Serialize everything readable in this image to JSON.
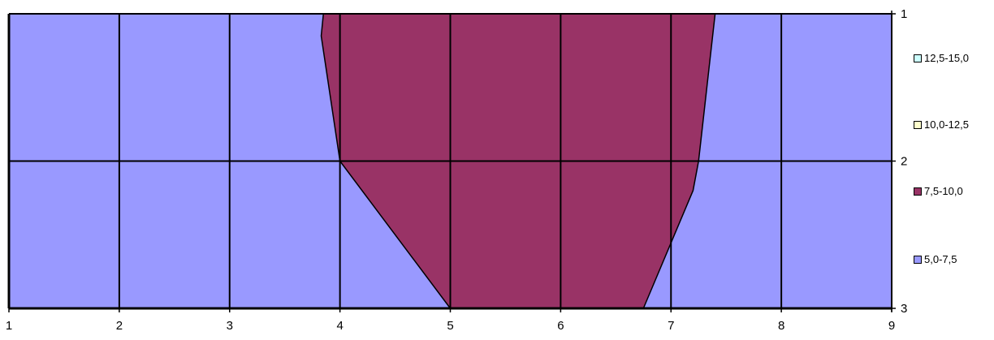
{
  "chart_data": {
    "type": "area",
    "x": {
      "ticks": [
        1,
        2,
        3,
        4,
        5,
        6,
        7,
        8,
        9
      ],
      "ticks_labels": [
        "1",
        "2",
        "3",
        "4",
        "5",
        "6",
        "7",
        "8",
        "9"
      ],
      "range": [
        1,
        9
      ]
    },
    "y": {
      "ticks": [
        1,
        2,
        3
      ],
      "ticks_labels": [
        "1",
        "2",
        "3"
      ],
      "range": [
        1,
        3
      ],
      "axis_position": "right",
      "direction": "top-to-bottom"
    },
    "grid": true,
    "legend_position": "right",
    "legend": [
      {
        "label": "12,5-15,0",
        "color": "#ccffff"
      },
      {
        "label": "10,0-12,5",
        "color": "#ffffcc"
      },
      {
        "label": "7,5-10,0",
        "color": "#993366"
      },
      {
        "label": "5,0-7,5",
        "color": "#9999ff"
      }
    ],
    "background_band": {
      "name": "5,0-7,5",
      "color": "#9999ff"
    },
    "bands": [
      {
        "name": "7,5-10,0",
        "color": "#993366",
        "left_edge": [
          [
            3.85,
            1.0
          ],
          [
            3.83,
            1.15
          ],
          [
            4.0,
            2.0
          ],
          [
            5.0,
            3.0
          ]
        ],
        "right_edge": [
          [
            7.4,
            1.0
          ],
          [
            7.25,
            2.0
          ],
          [
            7.2,
            2.2
          ],
          [
            6.75,
            3.0
          ]
        ]
      }
    ]
  }
}
